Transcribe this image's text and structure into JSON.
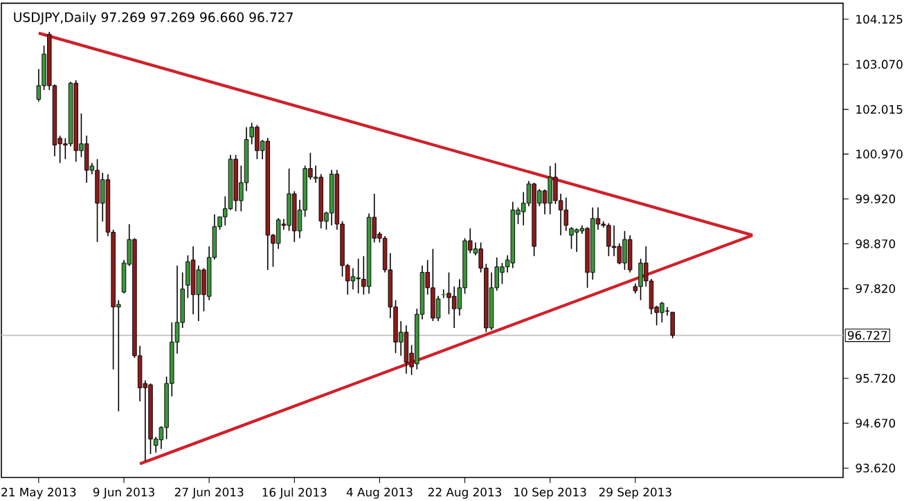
{
  "chart_data": {
    "type": "candlestick",
    "title": "USDJPY,Daily  97.269 97.269 96.660 96.727",
    "categories": [
      "21 May 2013",
      null,
      null,
      null,
      null,
      null,
      null,
      null,
      null,
      null,
      null,
      null,
      null,
      null,
      null,
      null,
      "9 Jun 2013",
      null,
      null,
      null,
      null,
      null,
      null,
      null,
      null,
      null,
      null,
      null,
      null,
      null,
      null,
      null,
      "27 Jun 2013",
      null,
      null,
      null,
      null,
      null,
      null,
      null,
      null,
      null,
      null,
      null,
      null,
      null,
      null,
      null,
      "16 Jul 2013",
      null,
      null,
      null,
      null,
      null,
      null,
      null,
      null,
      null,
      null,
      null,
      null,
      null,
      null,
      null,
      "4 Aug 2013",
      null,
      null,
      null,
      null,
      null,
      null,
      null,
      null,
      null,
      null,
      null,
      null,
      null,
      null,
      null,
      "22 Aug 2013",
      null,
      null,
      null,
      null,
      null,
      null,
      null,
      null,
      null,
      null,
      null,
      null,
      null,
      null,
      null,
      "10 Sep 2013",
      null,
      null,
      null,
      null,
      null,
      null,
      null,
      null,
      null,
      null,
      null,
      null,
      null,
      null,
      null,
      "29 Sep 2013",
      null,
      null,
      null,
      null,
      null,
      null,
      null,
      null,
      null,
      null,
      null,
      null,
      null,
      null,
      null,
      null,
      null,
      null,
      null,
      null,
      null,
      null,
      null,
      null,
      null,
      null,
      null,
      null,
      null,
      null,
      null,
      null,
      null,
      null,
      null,
      null,
      null,
      null,
      null
    ],
    "ohlc": [
      [
        102.25,
        102.96,
        102.2,
        102.57
      ],
      [
        102.57,
        103.51,
        102.47,
        103.31
      ],
      [
        103.77,
        103.83,
        102.47,
        102.57
      ],
      [
        102.57,
        102.6,
        100.92,
        101.18
      ],
      [
        101.34,
        101.4,
        100.76,
        101.21
      ],
      [
        101.21,
        101.34,
        100.85,
        101.18
      ],
      [
        101.21,
        102.66,
        101.15,
        102.63
      ],
      [
        102.63,
        102.7,
        100.79,
        101.05
      ],
      [
        101.05,
        101.92,
        100.9,
        101.21
      ],
      [
        101.21,
        101.4,
        100.3,
        100.59
      ],
      [
        100.59,
        100.76,
        100.5,
        100.69
      ],
      [
        100.59,
        100.85,
        98.91,
        99.82
      ],
      [
        99.82,
        100.53,
        99.39,
        100.37
      ],
      [
        100.37,
        100.5,
        99.05,
        99.14
      ],
      [
        99.14,
        99.2,
        95.93,
        97.39
      ],
      [
        97.39,
        97.55,
        94.95,
        97.45
      ],
      [
        97.74,
        98.49,
        97.71,
        98.42
      ],
      [
        98.39,
        99.33,
        98.35,
        98.97
      ],
      [
        98.97,
        99.0,
        96.2,
        96.25
      ],
      [
        96.25,
        96.48,
        95.18,
        95.5
      ],
      [
        95.6,
        95.67,
        93.79,
        95.5
      ],
      [
        95.57,
        95.6,
        93.95,
        94.3
      ],
      [
        94.15,
        94.35,
        93.98,
        94.3
      ],
      [
        94.28,
        94.6,
        94.07,
        94.57
      ],
      [
        94.57,
        95.76,
        94.3,
        95.6
      ],
      [
        95.6,
        97.03,
        95.3,
        96.57
      ],
      [
        96.57,
        98.36,
        96.3,
        97.03
      ],
      [
        97.03,
        98.2,
        96.9,
        97.81
      ],
      [
        97.9,
        98.6,
        97.6,
        98.45
      ],
      [
        98.49,
        98.81,
        97.22,
        97.68
      ],
      [
        97.68,
        98.36,
        97.06,
        98.26
      ],
      [
        98.26,
        98.3,
        97.29,
        97.68
      ],
      [
        97.64,
        98.81,
        97.55,
        98.55
      ],
      [
        98.55,
        99.56,
        98.5,
        99.27
      ],
      [
        99.27,
        99.5,
        99.2,
        99.5
      ],
      [
        99.5,
        99.98,
        99.3,
        99.69
      ],
      [
        99.69,
        100.95,
        99.66,
        100.85
      ],
      [
        100.85,
        100.95,
        99.63,
        99.88
      ],
      [
        99.88,
        100.7,
        99.63,
        100.3
      ],
      [
        100.3,
        101.6,
        100.1,
        101.31
      ],
      [
        101.37,
        101.7,
        101.2,
        101.6
      ],
      [
        101.6,
        101.65,
        100.85,
        101.05
      ],
      [
        101.05,
        101.3,
        100.85,
        101.27
      ],
      [
        101.27,
        101.35,
        98.26,
        99.07
      ],
      [
        99.07,
        99.1,
        98.33,
        98.88
      ],
      [
        98.88,
        99.47,
        98.75,
        99.43
      ],
      [
        99.33,
        99.45,
        99.2,
        99.3
      ],
      [
        99.3,
        100.63,
        99.17,
        100.04
      ],
      [
        100.04,
        100.1,
        98.91,
        99.17
      ],
      [
        99.17,
        99.9,
        99.0,
        99.66
      ],
      [
        99.66,
        100.7,
        99.5,
        100.63
      ],
      [
        100.63,
        101.0,
        100.37,
        100.43
      ],
      [
        100.4,
        100.7,
        100.3,
        100.43
      ],
      [
        100.43,
        100.5,
        99.23,
        99.4
      ],
      [
        99.4,
        99.62,
        99.2,
        99.59
      ],
      [
        99.59,
        100.6,
        99.3,
        100.5
      ],
      [
        100.5,
        100.6,
        99.2,
        99.33
      ],
      [
        99.33,
        99.4,
        98.1,
        98.36
      ],
      [
        98.36,
        98.4,
        97.68,
        98.0
      ],
      [
        98.0,
        98.3,
        97.8,
        98.1
      ],
      [
        98.05,
        98.52,
        97.71,
        98.07
      ],
      [
        98.04,
        98.58,
        97.68,
        97.87
      ],
      [
        97.87,
        99.58,
        97.7,
        99.49
      ],
      [
        99.49,
        100.04,
        98.9,
        99.0
      ],
      [
        99.1,
        99.15,
        98.9,
        99.0
      ],
      [
        99.0,
        99.05,
        98.2,
        98.26
      ],
      [
        98.26,
        98.65,
        97.13,
        97.39
      ],
      [
        97.39,
        97.55,
        96.31,
        96.57
      ],
      [
        96.57,
        97.06,
        96.25,
        96.8
      ],
      [
        96.8,
        96.96,
        95.83,
        96.09
      ],
      [
        96.31,
        96.5,
        95.8,
        95.99
      ],
      [
        96.06,
        97.35,
        95.93,
        97.22
      ],
      [
        97.22,
        98.36,
        97.1,
        98.2
      ],
      [
        98.2,
        98.49,
        97.68,
        97.84
      ],
      [
        97.84,
        98.75,
        97.06,
        97.13
      ],
      [
        97.13,
        97.65,
        97.06,
        97.58
      ],
      [
        97.68,
        97.8,
        97.6,
        97.68
      ],
      [
        97.71,
        98.2,
        97.22,
        97.61
      ],
      [
        97.64,
        97.87,
        96.9,
        97.35
      ],
      [
        97.35,
        98.04,
        97.19,
        97.84
      ],
      [
        97.84,
        99.0,
        97.7,
        98.94
      ],
      [
        98.94,
        99.23,
        98.65,
        98.72
      ],
      [
        98.65,
        98.9,
        98.6,
        98.75
      ],
      [
        98.75,
        98.9,
        98.2,
        98.3
      ],
      [
        98.3,
        98.4,
        96.8,
        96.9
      ],
      [
        96.9,
        98.2,
        96.85,
        97.84
      ],
      [
        97.84,
        98.55,
        97.77,
        98.33
      ],
      [
        98.2,
        98.42,
        97.93,
        98.33
      ],
      [
        98.33,
        98.6,
        98.2,
        98.49
      ],
      [
        98.42,
        99.85,
        98.3,
        99.66
      ],
      [
        99.56,
        99.72,
        99.33,
        99.66
      ],
      [
        99.62,
        100.08,
        99.3,
        99.82
      ],
      [
        99.82,
        100.34,
        99.75,
        100.27
      ],
      [
        100.27,
        100.3,
        98.58,
        98.81
      ],
      [
        99.82,
        100.15,
        99.75,
        100.11
      ],
      [
        100.11,
        100.14,
        99.56,
        99.82
      ],
      [
        99.82,
        100.69,
        99.56,
        100.43
      ],
      [
        100.43,
        100.76,
        99.8,
        99.88
      ],
      [
        99.88,
        100.04,
        99.07,
        99.66
      ],
      [
        99.66,
        99.95,
        99.17,
        99.3
      ],
      [
        99.07,
        99.26,
        98.75,
        99.23
      ],
      [
        99.14,
        99.23,
        98.68,
        99.2
      ],
      [
        99.17,
        99.3,
        99.1,
        99.23
      ],
      [
        99.23,
        99.26,
        97.84,
        98.2
      ],
      [
        98.2,
        99.72,
        98.03,
        99.46
      ],
      [
        99.46,
        99.72,
        99.2,
        99.33
      ],
      [
        99.33,
        99.4,
        99.25,
        99.3
      ],
      [
        99.3,
        99.35,
        98.58,
        98.81
      ],
      [
        98.81,
        99.3,
        98.58,
        98.78
      ],
      [
        98.81,
        98.88,
        98.39,
        98.42
      ],
      [
        98.42,
        99.17,
        98.26,
        98.97
      ],
      [
        98.97,
        99.07,
        98.2,
        98.26
      ],
      [
        97.87,
        97.94,
        97.71,
        97.77
      ],
      [
        97.87,
        98.52,
        97.55,
        98.42
      ],
      [
        98.42,
        98.81,
        97.87,
        98.0
      ],
      [
        98.0,
        98.05,
        97.22,
        97.35
      ],
      [
        97.39,
        97.42,
        96.96,
        97.26
      ],
      [
        97.26,
        97.51,
        97.03,
        97.48
      ],
      [
        97.3,
        97.39,
        97.19,
        97.29
      ],
      [
        97.269,
        97.269,
        96.66,
        96.727
      ],
      null,
      null,
      null,
      null,
      null,
      null,
      null,
      null,
      null,
      null,
      null,
      null,
      null,
      null,
      null,
      null,
      null,
      null,
      null,
      null,
      null,
      null,
      null,
      null,
      null,
      null,
      null,
      null,
      null,
      null,
      null,
      null
    ],
    "colors": [
      "#3c963c",
      "#3c963c",
      "#8c1c1c",
      "#8c1c1c",
      "#8c1c1c",
      "#8c1c1c",
      "#3c963c",
      "#8c1c1c",
      "#3c963c",
      "#8c1c1c",
      "#3c963c",
      "#8c1c1c",
      "#3c963c",
      "#8c1c1c",
      "#8c1c1c",
      "#3c963c",
      "#3c963c",
      "#3c963c",
      "#8c1c1c",
      "#8c1c1c",
      "#8c1c1c",
      "#8c1c1c",
      "#3c963c",
      "#3c963c",
      "#3c963c",
      "#3c963c",
      "#3c963c",
      "#3c963c",
      "#3c963c",
      "#8c1c1c",
      "#3c963c",
      "#8c1c1c",
      "#3c963c",
      "#3c963c",
      "#3c963c",
      "#3c963c",
      "#3c963c",
      "#8c1c1c",
      "#3c963c",
      "#3c963c",
      "#3c963c",
      "#8c1c1c",
      "#3c963c",
      "#8c1c1c",
      "#8c1c1c",
      "#3c963c",
      "#8c1c1c",
      "#3c963c",
      "#8c1c1c",
      "#3c963c",
      "#3c963c",
      "#8c1c1c",
      "#3c963c",
      "#8c1c1c",
      "#3c963c",
      "#3c963c",
      "#8c1c1c",
      "#8c1c1c",
      "#8c1c1c",
      "#3c963c",
      "#3c963c",
      "#8c1c1c",
      "#3c963c",
      "#8c1c1c",
      "#8c1c1c",
      "#8c1c1c",
      "#8c1c1c",
      "#8c1c1c",
      "#3c963c",
      "#8c1c1c",
      "#8c1c1c",
      "#3c963c",
      "#3c963c",
      "#8c1c1c",
      "#8c1c1c",
      "#3c963c",
      "#3c963c",
      "#8c1c1c",
      "#8c1c1c",
      "#3c963c",
      "#3c963c",
      "#8c1c1c",
      "#3c963c",
      "#8c1c1c",
      "#8c1c1c",
      "#3c963c",
      "#3c963c",
      "#3c963c",
      "#3c963c",
      "#3c963c",
      "#3c963c",
      "#3c963c",
      "#3c963c",
      "#8c1c1c",
      "#3c963c",
      "#8c1c1c",
      "#3c963c",
      "#8c1c1c",
      "#8c1c1c",
      "#8c1c1c",
      "#3c963c",
      "#3c963c",
      "#3c963c",
      "#8c1c1c",
      "#3c963c",
      "#8c1c1c",
      "#8c1c1c",
      "#8c1c1c",
      "#8c1c1c",
      "#8c1c1c",
      "#3c963c",
      "#8c1c1c",
      "#8c1c1c",
      "#3c963c",
      "#8c1c1c",
      "#8c1c1c",
      "#8c1c1c",
      "#3c963c",
      "#8c1c1c",
      "#8c1c1c",
      null,
      null,
      null,
      null,
      null,
      null,
      null,
      null,
      null,
      null,
      null,
      null,
      null,
      null,
      null,
      null,
      null,
      null,
      null,
      null,
      null,
      null,
      null,
      null,
      null,
      null,
      null,
      null,
      null,
      null,
      null,
      null
    ],
    "series": [
      {
        "type": "line",
        "color": "#d0202a",
        "values": [
          103.8,
          null,
          null,
          null,
          null,
          null,
          null,
          null,
          null,
          null,
          null,
          null,
          null,
          null,
          null,
          null,
          null,
          null,
          null,
          null,
          null,
          null,
          null,
          null,
          null,
          null,
          null,
          null,
          null,
          null,
          null,
          null,
          null,
          null,
          null,
          null,
          null,
          null,
          null,
          null,
          null,
          null,
          null,
          null,
          null,
          null,
          null,
          null,
          null,
          null,
          null,
          null,
          null,
          null,
          null,
          null,
          null,
          null,
          null,
          null,
          null,
          null,
          null,
          null,
          null,
          null,
          null,
          null,
          null,
          null,
          null,
          null,
          null,
          null,
          null,
          null,
          null,
          null,
          null,
          null,
          null,
          null,
          null,
          null,
          null,
          null,
          null,
          null,
          null,
          null,
          null,
          null,
          null,
          null,
          null,
          null,
          null,
          null,
          null,
          null,
          null,
          null,
          null,
          null,
          null,
          null,
          null,
          null,
          null,
          null,
          null,
          null,
          null,
          null,
          null,
          null,
          null,
          null,
          null,
          null,
          null,
          null,
          null,
          null,
          null,
          null,
          null,
          null,
          null,
          null,
          null,
          null,
          null,
          null,
          99.07,
          null,
          null,
          null,
          null,
          null,
          null,
          null,
          null,
          null,
          null,
          null,
          null,
          null,
          null,
          null,
          null,
          null
        ]
      },
      {
        "type": "line",
        "color": "#d0202a",
        "values": [
          null,
          null,
          null,
          null,
          null,
          null,
          null,
          null,
          null,
          null,
          null,
          null,
          null,
          null,
          null,
          null,
          null,
          null,
          null,
          93.72,
          null,
          null,
          null,
          null,
          null,
          null,
          null,
          null,
          null,
          null,
          null,
          null,
          null,
          null,
          null,
          null,
          null,
          null,
          null,
          null,
          null,
          null,
          null,
          null,
          null,
          null,
          null,
          null,
          null,
          null,
          null,
          null,
          null,
          null,
          null,
          null,
          null,
          null,
          null,
          null,
          null,
          null,
          null,
          null,
          null,
          null,
          null,
          null,
          null,
          null,
          null,
          null,
          null,
          null,
          null,
          null,
          null,
          null,
          null,
          null,
          null,
          null,
          null,
          null,
          null,
          null,
          null,
          null,
          null,
          null,
          null,
          null,
          null,
          null,
          null,
          null,
          null,
          null,
          null,
          null,
          null,
          null,
          null,
          null,
          null,
          null,
          null,
          null,
          null,
          null,
          null,
          null,
          null,
          null,
          null,
          null,
          null,
          null,
          null,
          null,
          null,
          null,
          null,
          null,
          null,
          null,
          null,
          null,
          null,
          null,
          null,
          null,
          null,
          null,
          99.07,
          null,
          null,
          null,
          null,
          null,
          null,
          null,
          null,
          null,
          null,
          null,
          null,
          null,
          null,
          null,
          null,
          null
        ]
      }
    ],
    "ylim": [
      93.4,
      104.5
    ],
    "yticks": [
      {
        "value": 93.62,
        "label": "93.620"
      },
      {
        "value": 94.67,
        "label": "94.670"
      },
      {
        "value": 95.72,
        "label": "95.720"
      },
      {
        "value": 97.82,
        "label": "97.820"
      },
      {
        "value": 98.87,
        "label": "98.870"
      },
      {
        "value": 99.92,
        "label": "99.920"
      },
      {
        "value": 100.97,
        "label": "100.970"
      },
      {
        "value": 102.015,
        "label": "102.015"
      },
      {
        "value": 103.07,
        "label": "103.070"
      },
      {
        "value": 104.125,
        "label": "104.125"
      }
    ],
    "ref_lines": [
      {
        "axis": "y",
        "value": 96.727,
        "label": "96.727",
        "color": "#c0c0c0"
      }
    ]
  }
}
